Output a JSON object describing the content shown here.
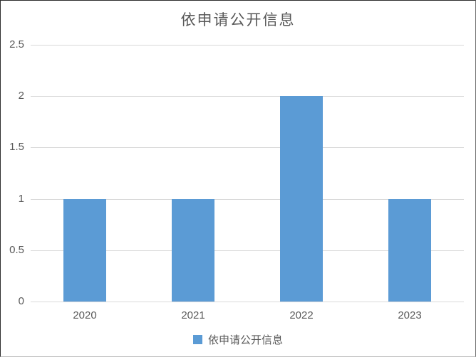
{
  "title": "依申请公开信息",
  "chart_data": {
    "type": "bar",
    "title": "依申请公开信息",
    "categories": [
      "2020",
      "2021",
      "2022",
      "2023"
    ],
    "series": [
      {
        "name": "依申请公开信息",
        "values": [
          1,
          1,
          2,
          1
        ]
      }
    ],
    "xlabel": "",
    "ylabel": "",
    "ylim": [
      0,
      2.5
    ],
    "yticks": [
      0,
      0.5,
      1,
      1.5,
      2,
      2.5
    ],
    "grid": true,
    "legend_position": "bottom",
    "colors": {
      "bar": "#5B9BD5",
      "gridline": "#D9D9D9",
      "text": "#595959",
      "background": "#FFFFFF"
    }
  },
  "legend": {
    "label": "依申请公开信息"
  }
}
